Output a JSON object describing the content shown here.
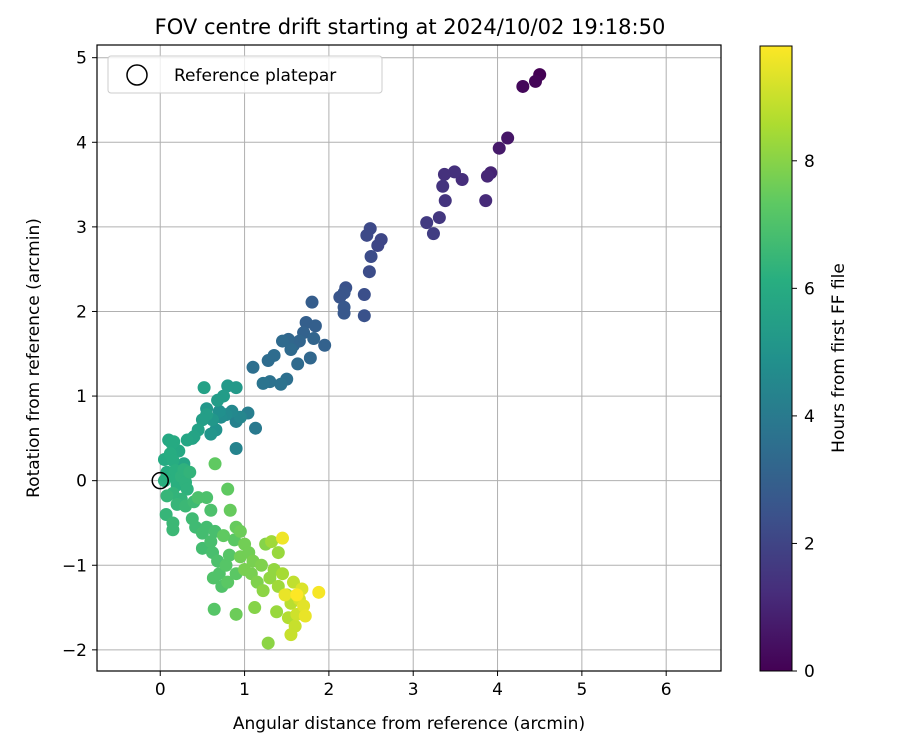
{
  "chart_data": {
    "type": "scatter",
    "title": "FOV centre drift starting at 2024/10/02 19:18:50",
    "xlabel": "Angular distance from reference (arcmin)",
    "ylabel": "Rotation from reference (arcmin)",
    "xlim": [
      -0.75,
      6.65
    ],
    "ylim": [
      -2.25,
      5.15
    ],
    "xticks": [
      0,
      1,
      2,
      3,
      4,
      5,
      6
    ],
    "yticks": [
      -2,
      -1,
      0,
      1,
      2,
      3,
      4,
      5
    ],
    "grid": true,
    "legend": {
      "location": "upper-left",
      "entries": [
        "Reference platepar"
      ]
    },
    "reference_point": {
      "x": 0,
      "y": 0,
      "label": "Reference platepar"
    },
    "colorbar": {
      "label": "Hours from first FF file",
      "min": 0,
      "max": 9.8,
      "ticks": [
        0,
        2,
        4,
        6,
        8
      ],
      "colormap": "viridis"
    },
    "points": [
      {
        "x": 4.5,
        "y": 4.8,
        "c": 0.0
      },
      {
        "x": 4.45,
        "y": 4.72,
        "c": 0.1
      },
      {
        "x": 4.3,
        "y": 4.66,
        "c": 0.2
      },
      {
        "x": 4.12,
        "y": 4.05,
        "c": 0.6
      },
      {
        "x": 4.02,
        "y": 3.93,
        "c": 0.7
      },
      {
        "x": 3.92,
        "y": 3.64,
        "c": 1.0
      },
      {
        "x": 3.88,
        "y": 3.6,
        "c": 1.1
      },
      {
        "x": 3.86,
        "y": 3.31,
        "c": 1.2
      },
      {
        "x": 3.58,
        "y": 3.56,
        "c": 1.3
      },
      {
        "x": 3.49,
        "y": 3.65,
        "c": 1.4
      },
      {
        "x": 3.37,
        "y": 3.62,
        "c": 1.4
      },
      {
        "x": 3.35,
        "y": 3.48,
        "c": 1.5
      },
      {
        "x": 3.38,
        "y": 3.31,
        "c": 1.5
      },
      {
        "x": 3.31,
        "y": 3.11,
        "c": 1.6
      },
      {
        "x": 3.16,
        "y": 3.05,
        "c": 1.7
      },
      {
        "x": 3.24,
        "y": 2.92,
        "c": 1.8
      },
      {
        "x": 2.62,
        "y": 2.85,
        "c": 2.1
      },
      {
        "x": 2.58,
        "y": 2.78,
        "c": 2.1
      },
      {
        "x": 2.49,
        "y": 2.98,
        "c": 2.2
      },
      {
        "x": 2.45,
        "y": 2.9,
        "c": 2.2
      },
      {
        "x": 2.5,
        "y": 2.65,
        "c": 2.3
      },
      {
        "x": 2.48,
        "y": 2.47,
        "c": 2.3
      },
      {
        "x": 2.42,
        "y": 2.2,
        "c": 2.4
      },
      {
        "x": 2.42,
        "y": 1.95,
        "c": 2.5
      },
      {
        "x": 2.2,
        "y": 2.28,
        "c": 2.5
      },
      {
        "x": 2.18,
        "y": 2.22,
        "c": 2.6
      },
      {
        "x": 2.13,
        "y": 2.17,
        "c": 2.6
      },
      {
        "x": 2.18,
        "y": 2.05,
        "c": 2.7
      },
      {
        "x": 2.18,
        "y": 1.98,
        "c": 2.7
      },
      {
        "x": 1.8,
        "y": 2.11,
        "c": 2.9
      },
      {
        "x": 1.73,
        "y": 1.87,
        "c": 3.0
      },
      {
        "x": 1.84,
        "y": 1.83,
        "c": 3.0
      },
      {
        "x": 1.95,
        "y": 1.6,
        "c": 3.1
      },
      {
        "x": 1.7,
        "y": 1.75,
        "c": 3.1
      },
      {
        "x": 1.65,
        "y": 1.65,
        "c": 3.2
      },
      {
        "x": 1.58,
        "y": 1.6,
        "c": 3.2
      },
      {
        "x": 1.82,
        "y": 1.68,
        "c": 3.2
      },
      {
        "x": 1.78,
        "y": 1.45,
        "c": 3.3
      },
      {
        "x": 1.52,
        "y": 1.67,
        "c": 3.3
      },
      {
        "x": 1.45,
        "y": 1.65,
        "c": 3.4
      },
      {
        "x": 1.55,
        "y": 1.55,
        "c": 3.4
      },
      {
        "x": 1.63,
        "y": 1.38,
        "c": 3.4
      },
      {
        "x": 1.35,
        "y": 1.48,
        "c": 3.5
      },
      {
        "x": 1.28,
        "y": 1.42,
        "c": 3.5
      },
      {
        "x": 1.1,
        "y": 1.34,
        "c": 3.6
      },
      {
        "x": 1.5,
        "y": 1.2,
        "c": 3.6
      },
      {
        "x": 1.43,
        "y": 1.14,
        "c": 3.7
      },
      {
        "x": 1.3,
        "y": 1.17,
        "c": 3.7
      },
      {
        "x": 1.22,
        "y": 1.15,
        "c": 3.8
      },
      {
        "x": 1.13,
        "y": 0.62,
        "c": 4.0
      },
      {
        "x": 1.04,
        "y": 0.8,
        "c": 4.2
      },
      {
        "x": 0.9,
        "y": 0.7,
        "c": 4.3
      },
      {
        "x": 0.9,
        "y": 0.38,
        "c": 4.4
      },
      {
        "x": 0.95,
        "y": 0.75,
        "c": 4.5
      },
      {
        "x": 0.85,
        "y": 0.82,
        "c": 4.6
      },
      {
        "x": 0.78,
        "y": 0.78,
        "c": 4.7
      },
      {
        "x": 0.72,
        "y": 0.75,
        "c": 4.8
      },
      {
        "x": 0.7,
        "y": 0.82,
        "c": 4.9
      },
      {
        "x": 0.66,
        "y": 0.6,
        "c": 5.0
      },
      {
        "x": 0.6,
        "y": 0.55,
        "c": 5.1
      },
      {
        "x": 0.55,
        "y": 0.85,
        "c": 5.2
      },
      {
        "x": 0.62,
        "y": 0.72,
        "c": 5.2
      },
      {
        "x": 0.9,
        "y": 1.1,
        "c": 5.3
      },
      {
        "x": 0.8,
        "y": 1.12,
        "c": 5.3
      },
      {
        "x": 0.75,
        "y": 1.0,
        "c": 5.4
      },
      {
        "x": 0.68,
        "y": 0.95,
        "c": 5.4
      },
      {
        "x": 0.55,
        "y": 0.78,
        "c": 5.5
      },
      {
        "x": 0.5,
        "y": 0.72,
        "c": 5.5
      },
      {
        "x": 0.52,
        "y": 1.1,
        "c": 5.6
      },
      {
        "x": 0.45,
        "y": 0.6,
        "c": 5.6
      },
      {
        "x": 0.4,
        "y": 0.52,
        "c": 5.7
      },
      {
        "x": 0.38,
        "y": 0.5,
        "c": 5.7
      },
      {
        "x": 0.32,
        "y": 0.48,
        "c": 5.8
      },
      {
        "x": 0.28,
        "y": 0.2,
        "c": 5.8
      },
      {
        "x": 0.22,
        "y": 0.35,
        "c": 5.9
      },
      {
        "x": 0.1,
        "y": 0.48,
        "c": 5.9
      },
      {
        "x": 0.14,
        "y": 0.44,
        "c": 6.0
      },
      {
        "x": 0.16,
        "y": 0.46,
        "c": 6.0
      },
      {
        "x": 0.05,
        "y": 0.25,
        "c": 6.0
      },
      {
        "x": 0.08,
        "y": 0.1,
        "c": 6.1
      },
      {
        "x": 0.12,
        "y": 0.32,
        "c": 6.1
      },
      {
        "x": 0.15,
        "y": 0.24,
        "c": 6.1
      },
      {
        "x": 0.05,
        "y": 0.0,
        "c": 6.2
      },
      {
        "x": 0.15,
        "y": 0.05,
        "c": 6.2
      },
      {
        "x": 0.18,
        "y": 0.12,
        "c": 6.2
      },
      {
        "x": 0.2,
        "y": -0.05,
        "c": 6.2
      },
      {
        "x": 0.25,
        "y": 0.05,
        "c": 6.3
      },
      {
        "x": 0.28,
        "y": 0.13,
        "c": 6.3
      },
      {
        "x": 0.3,
        "y": -0.02,
        "c": 6.3
      },
      {
        "x": 0.32,
        "y": -0.1,
        "c": 6.3
      },
      {
        "x": 0.35,
        "y": 0.1,
        "c": 6.4
      },
      {
        "x": 0.25,
        "y": -0.22,
        "c": 6.4
      },
      {
        "x": 0.15,
        "y": -0.15,
        "c": 6.4
      },
      {
        "x": 0.2,
        "y": -0.28,
        "c": 6.5
      },
      {
        "x": 0.08,
        "y": -0.18,
        "c": 6.5
      },
      {
        "x": 0.07,
        "y": -0.4,
        "c": 6.5
      },
      {
        "x": 0.15,
        "y": -0.5,
        "c": 6.6
      },
      {
        "x": 0.15,
        "y": -0.58,
        "c": 6.6
      },
      {
        "x": 0.3,
        "y": -0.3,
        "c": 6.6
      },
      {
        "x": 0.38,
        "y": -0.45,
        "c": 6.7
      },
      {
        "x": 0.4,
        "y": -0.25,
        "c": 6.7
      },
      {
        "x": 0.42,
        "y": -0.55,
        "c": 6.7
      },
      {
        "x": 0.5,
        "y": -0.62,
        "c": 6.8
      },
      {
        "x": 0.55,
        "y": -0.55,
        "c": 6.8
      },
      {
        "x": 0.5,
        "y": -0.8,
        "c": 6.8
      },
      {
        "x": 0.6,
        "y": -0.72,
        "c": 6.9
      },
      {
        "x": 0.65,
        "y": -0.6,
        "c": 6.9
      },
      {
        "x": 0.62,
        "y": -0.85,
        "c": 6.9
      },
      {
        "x": 0.68,
        "y": -0.95,
        "c": 7.0
      },
      {
        "x": 0.6,
        "y": -0.35,
        "c": 7.0
      },
      {
        "x": 0.55,
        "y": -0.2,
        "c": 7.0
      },
      {
        "x": 0.45,
        "y": -0.2,
        "c": 7.0
      },
      {
        "x": 0.63,
        "y": -1.15,
        "c": 7.1
      },
      {
        "x": 0.7,
        "y": -1.1,
        "c": 7.1
      },
      {
        "x": 0.73,
        "y": -1.25,
        "c": 7.1
      },
      {
        "x": 0.64,
        "y": -1.52,
        "c": 7.2
      },
      {
        "x": 0.78,
        "y": -1.0,
        "c": 7.2
      },
      {
        "x": 0.82,
        "y": -0.88,
        "c": 7.2
      },
      {
        "x": 0.8,
        "y": -1.2,
        "c": 7.3
      },
      {
        "x": 0.9,
        "y": -1.1,
        "c": 7.3
      },
      {
        "x": 0.88,
        "y": -0.7,
        "c": 7.3
      },
      {
        "x": 0.75,
        "y": -0.65,
        "c": 7.4
      },
      {
        "x": 0.65,
        "y": 0.2,
        "c": 7.4
      },
      {
        "x": 0.8,
        "y": -0.1,
        "c": 7.4
      },
      {
        "x": 0.83,
        "y": -0.35,
        "c": 7.5
      },
      {
        "x": 0.9,
        "y": -0.55,
        "c": 7.5
      },
      {
        "x": 0.9,
        "y": -1.58,
        "c": 7.6
      },
      {
        "x": 0.95,
        "y": -0.6,
        "c": 7.6
      },
      {
        "x": 1.0,
        "y": -0.75,
        "c": 7.7
      },
      {
        "x": 0.95,
        "y": -0.9,
        "c": 7.7
      },
      {
        "x": 1.05,
        "y": -0.85,
        "c": 7.7
      },
      {
        "x": 1.0,
        "y": -1.05,
        "c": 7.8
      },
      {
        "x": 1.08,
        "y": -1.1,
        "c": 7.8
      },
      {
        "x": 1.1,
        "y": -0.95,
        "c": 7.8
      },
      {
        "x": 1.15,
        "y": -1.2,
        "c": 7.9
      },
      {
        "x": 1.2,
        "y": -1.0,
        "c": 7.9
      },
      {
        "x": 1.25,
        "y": -0.75,
        "c": 8.0
      },
      {
        "x": 1.12,
        "y": -1.5,
        "c": 8.0
      },
      {
        "x": 1.28,
        "y": -1.92,
        "c": 8.1
      },
      {
        "x": 1.22,
        "y": -1.3,
        "c": 8.1
      },
      {
        "x": 1.3,
        "y": -1.15,
        "c": 8.2
      },
      {
        "x": 1.35,
        "y": -1.05,
        "c": 8.2
      },
      {
        "x": 1.38,
        "y": -1.55,
        "c": 8.3
      },
      {
        "x": 1.4,
        "y": -0.85,
        "c": 8.3
      },
      {
        "x": 1.32,
        "y": -0.72,
        "c": 8.4
      },
      {
        "x": 1.4,
        "y": -1.25,
        "c": 8.4
      },
      {
        "x": 1.45,
        "y": -1.1,
        "c": 8.5
      },
      {
        "x": 1.5,
        "y": -1.35,
        "c": 8.6
      },
      {
        "x": 1.52,
        "y": -1.62,
        "c": 8.7
      },
      {
        "x": 1.55,
        "y": -1.45,
        "c": 8.8
      },
      {
        "x": 1.58,
        "y": -1.2,
        "c": 8.9
      },
      {
        "x": 1.6,
        "y": -1.72,
        "c": 9.0
      },
      {
        "x": 1.62,
        "y": -1.58,
        "c": 9.1
      },
      {
        "x": 1.65,
        "y": -1.4,
        "c": 9.2
      },
      {
        "x": 1.68,
        "y": -1.28,
        "c": 9.3
      },
      {
        "x": 1.7,
        "y": -1.48,
        "c": 9.4
      },
      {
        "x": 1.72,
        "y": -1.6,
        "c": 9.5
      },
      {
        "x": 1.48,
        "y": -1.35,
        "c": 9.5
      },
      {
        "x": 1.45,
        "y": -0.68,
        "c": 9.6
      },
      {
        "x": 1.88,
        "y": -1.32,
        "c": 9.7
      },
      {
        "x": 1.62,
        "y": -1.35,
        "c": 9.8
      },
      {
        "x": 1.55,
        "y": -1.82,
        "c": 9.0
      }
    ]
  }
}
